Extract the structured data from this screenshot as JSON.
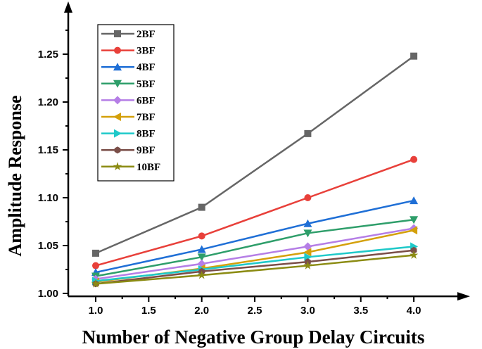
{
  "chart_data": {
    "type": "line",
    "title": "",
    "xlabel": "Number of Negative Group Delay Circuits",
    "ylabel": "Amplitude Response",
    "x": [
      1.0,
      2.0,
      3.0,
      4.0
    ],
    "xticks": [
      "1.0",
      "1.5",
      "2.0",
      "2.5",
      "3.0",
      "3.5",
      "4.0"
    ],
    "yticks": [
      "1.00",
      "1.05",
      "1.10",
      "1.15",
      "1.20",
      "1.25"
    ],
    "xlim": [
      0.6,
      4.5
    ],
    "ylim": [
      0.997,
      1.3
    ],
    "grid": false,
    "legend_position": "top-left",
    "series": [
      {
        "name": "2BF",
        "color": "#666666",
        "marker": "square",
        "values": [
          1.042,
          1.09,
          1.167,
          1.248
        ]
      },
      {
        "name": "3BF",
        "color": "#e8403a",
        "marker": "circle",
        "values": [
          1.029,
          1.06,
          1.1,
          1.14
        ]
      },
      {
        "name": "4BF",
        "color": "#1f6fd6",
        "marker": "triangle-up",
        "values": [
          1.022,
          1.046,
          1.073,
          1.097
        ]
      },
      {
        "name": "5BF",
        "color": "#2e9e6a",
        "marker": "triangle-down",
        "values": [
          1.018,
          1.038,
          1.063,
          1.077
        ]
      },
      {
        "name": "6BF",
        "color": "#b57ee6",
        "marker": "diamond",
        "values": [
          1.015,
          1.031,
          1.049,
          1.068
        ]
      },
      {
        "name": "7BF",
        "color": "#d4a00a",
        "marker": "triangle-left",
        "values": [
          1.012,
          1.026,
          1.043,
          1.066
        ]
      },
      {
        "name": "8BF",
        "color": "#1fc9c9",
        "marker": "triangle-right",
        "values": [
          1.013,
          1.025,
          1.038,
          1.049
        ]
      },
      {
        "name": "9BF",
        "color": "#7a4e48",
        "marker": "hexagon",
        "values": [
          1.01,
          1.023,
          1.033,
          1.045
        ]
      },
      {
        "name": "10BF",
        "color": "#8b8b12",
        "marker": "star",
        "values": [
          1.01,
          1.019,
          1.029,
          1.04
        ]
      }
    ]
  }
}
